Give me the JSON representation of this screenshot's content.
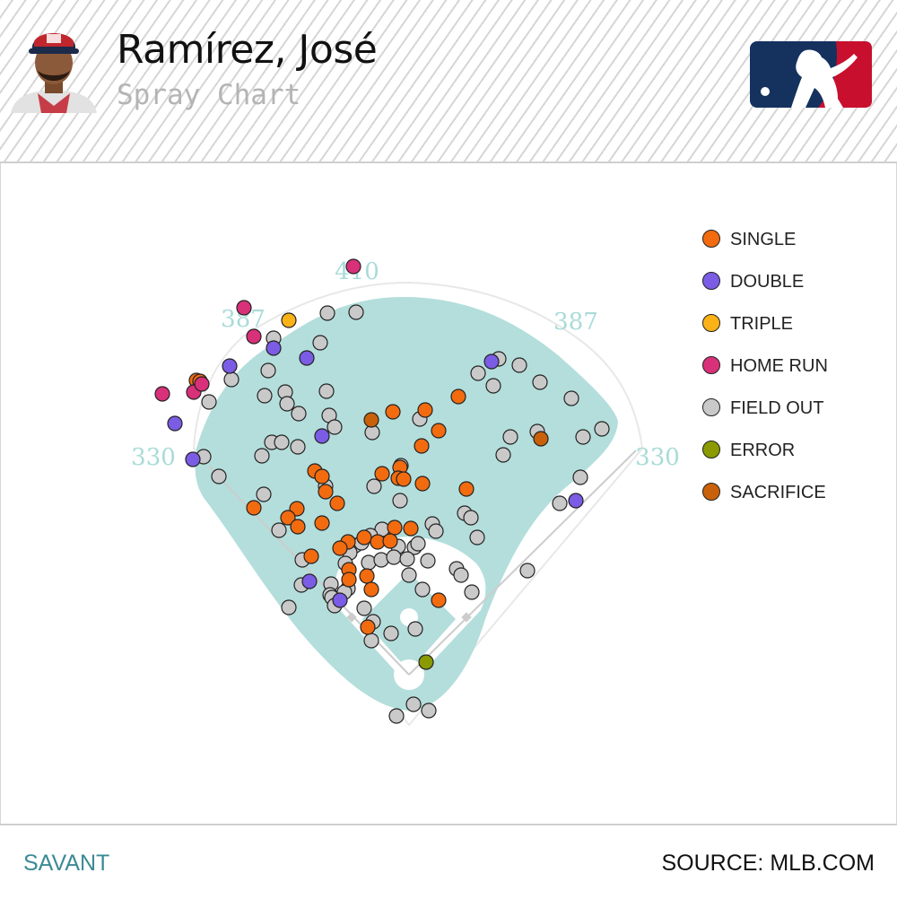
{
  "header": {
    "player_name": "Ramírez, José",
    "subtitle": "Spray Chart",
    "avatar_icon": "player-headshot-icon",
    "logo_icon": "mlb-logo-icon"
  },
  "footer": {
    "left_label": "SAVANT",
    "right_label": "SOURCE: MLB.COM"
  },
  "chart_data": {
    "type": "scatter",
    "title": "Spray Chart",
    "field_distances": {
      "left_line": "330",
      "left_center": "387",
      "center": "410",
      "right_center": "387",
      "right_line": "330"
    },
    "grid": false,
    "legend_position": "right",
    "series": [
      {
        "name": "SINGLE",
        "color": "#f26b0f",
        "points": [
          [
            218,
            424
          ],
          [
            222,
            425
          ],
          [
            437,
            459
          ],
          [
            473,
            457
          ],
          [
            488,
            480
          ],
          [
            510,
            442
          ],
          [
            469,
            497
          ],
          [
            350,
            525
          ],
          [
            358,
            531
          ],
          [
            425,
            528
          ],
          [
            445,
            521
          ],
          [
            443,
            533
          ],
          [
            449,
            534
          ],
          [
            470,
            539
          ],
          [
            519,
            545
          ],
          [
            362,
            548
          ],
          [
            375,
            561
          ],
          [
            282,
            566
          ],
          [
            330,
            567
          ],
          [
            320,
            577
          ],
          [
            331,
            587
          ],
          [
            358,
            583
          ],
          [
            439,
            588
          ],
          [
            457,
            589
          ],
          [
            387,
            604
          ],
          [
            378,
            611
          ],
          [
            405,
            599
          ],
          [
            420,
            604
          ],
          [
            434,
            603
          ],
          [
            346,
            620
          ],
          [
            388,
            635
          ],
          [
            388,
            646
          ],
          [
            408,
            642
          ],
          [
            413,
            657
          ],
          [
            488,
            669
          ],
          [
            409,
            699
          ]
        ]
      },
      {
        "name": "DOUBLE",
        "color": "#7b5ce5",
        "points": [
          [
            304,
            388
          ],
          [
            341,
            399
          ],
          [
            255,
            408
          ],
          [
            547,
            403
          ],
          [
            194,
            472
          ],
          [
            358,
            486
          ],
          [
            214,
            512
          ],
          [
            641,
            558
          ],
          [
            344,
            648
          ],
          [
            378,
            669
          ]
        ]
      },
      {
        "name": "TRIPLE",
        "color": "#fbb217",
        "points": [
          [
            321,
            357
          ]
        ]
      },
      {
        "name": "HOME RUN",
        "color": "#d9307a",
        "points": [
          [
            393,
            297
          ],
          [
            271,
            343
          ],
          [
            282,
            375
          ],
          [
            180,
            439
          ],
          [
            215,
            437
          ],
          [
            224,
            428
          ]
        ]
      },
      {
        "name": "FIELD OUT",
        "color": "#c9c9c9",
        "points": [
          [
            364,
            349
          ],
          [
            396,
            348
          ],
          [
            304,
            377
          ],
          [
            356,
            382
          ],
          [
            555,
            400
          ],
          [
            532,
            416
          ],
          [
            578,
            407
          ],
          [
            549,
            430
          ],
          [
            298,
            413
          ],
          [
            257,
            423
          ],
          [
            601,
            426
          ],
          [
            636,
            444
          ],
          [
            363,
            436
          ],
          [
            294,
            441
          ],
          [
            317,
            437
          ],
          [
            319,
            450
          ],
          [
            232,
            448
          ],
          [
            332,
            461
          ],
          [
            366,
            463
          ],
          [
            467,
            467
          ],
          [
            372,
            476
          ],
          [
            414,
            482
          ],
          [
            568,
            487
          ],
          [
            598,
            481
          ],
          [
            649,
            487
          ],
          [
            670,
            478
          ],
          [
            302,
            493
          ],
          [
            313,
            493
          ],
          [
            331,
            498
          ],
          [
            291,
            508
          ],
          [
            560,
            507
          ],
          [
            226,
            509
          ],
          [
            446,
            519
          ],
          [
            243,
            531
          ],
          [
            646,
            532
          ],
          [
            362,
            542
          ],
          [
            416,
            542
          ],
          [
            293,
            551
          ],
          [
            445,
            558
          ],
          [
            623,
            561
          ],
          [
            517,
            572
          ],
          [
            524,
            577
          ],
          [
            310,
            591
          ],
          [
            481,
            584
          ],
          [
            485,
            592
          ],
          [
            425,
            590
          ],
          [
            412,
            597
          ],
          [
            395,
            608
          ],
          [
            389,
            616
          ],
          [
            402,
            605
          ],
          [
            531,
            599
          ],
          [
            443,
            609
          ],
          [
            461,
            610
          ],
          [
            465,
            606
          ],
          [
            410,
            627
          ],
          [
            424,
            624
          ],
          [
            438,
            621
          ],
          [
            453,
            623
          ],
          [
            476,
            625
          ],
          [
            384,
            628
          ],
          [
            336,
            624
          ],
          [
            587,
            636
          ],
          [
            508,
            634
          ],
          [
            513,
            641
          ],
          [
            387,
            656
          ],
          [
            368,
            651
          ],
          [
            367,
            663
          ],
          [
            455,
            641
          ],
          [
            369,
            666
          ],
          [
            383,
            660
          ],
          [
            335,
            652
          ],
          [
            470,
            657
          ],
          [
            525,
            660
          ],
          [
            321,
            677
          ],
          [
            405,
            678
          ],
          [
            372,
            675
          ],
          [
            415,
            693
          ],
          [
            435,
            706
          ],
          [
            462,
            701
          ],
          [
            413,
            714
          ],
          [
            460,
            785
          ],
          [
            477,
            792
          ],
          [
            441,
            798
          ]
        ]
      },
      {
        "name": "ERROR",
        "color": "#8a9a00",
        "points": [
          [
            474,
            738
          ]
        ]
      },
      {
        "name": "SACRIFICE",
        "color": "#c8610a",
        "points": [
          [
            413,
            468
          ],
          [
            602,
            489
          ]
        ]
      }
    ]
  }
}
